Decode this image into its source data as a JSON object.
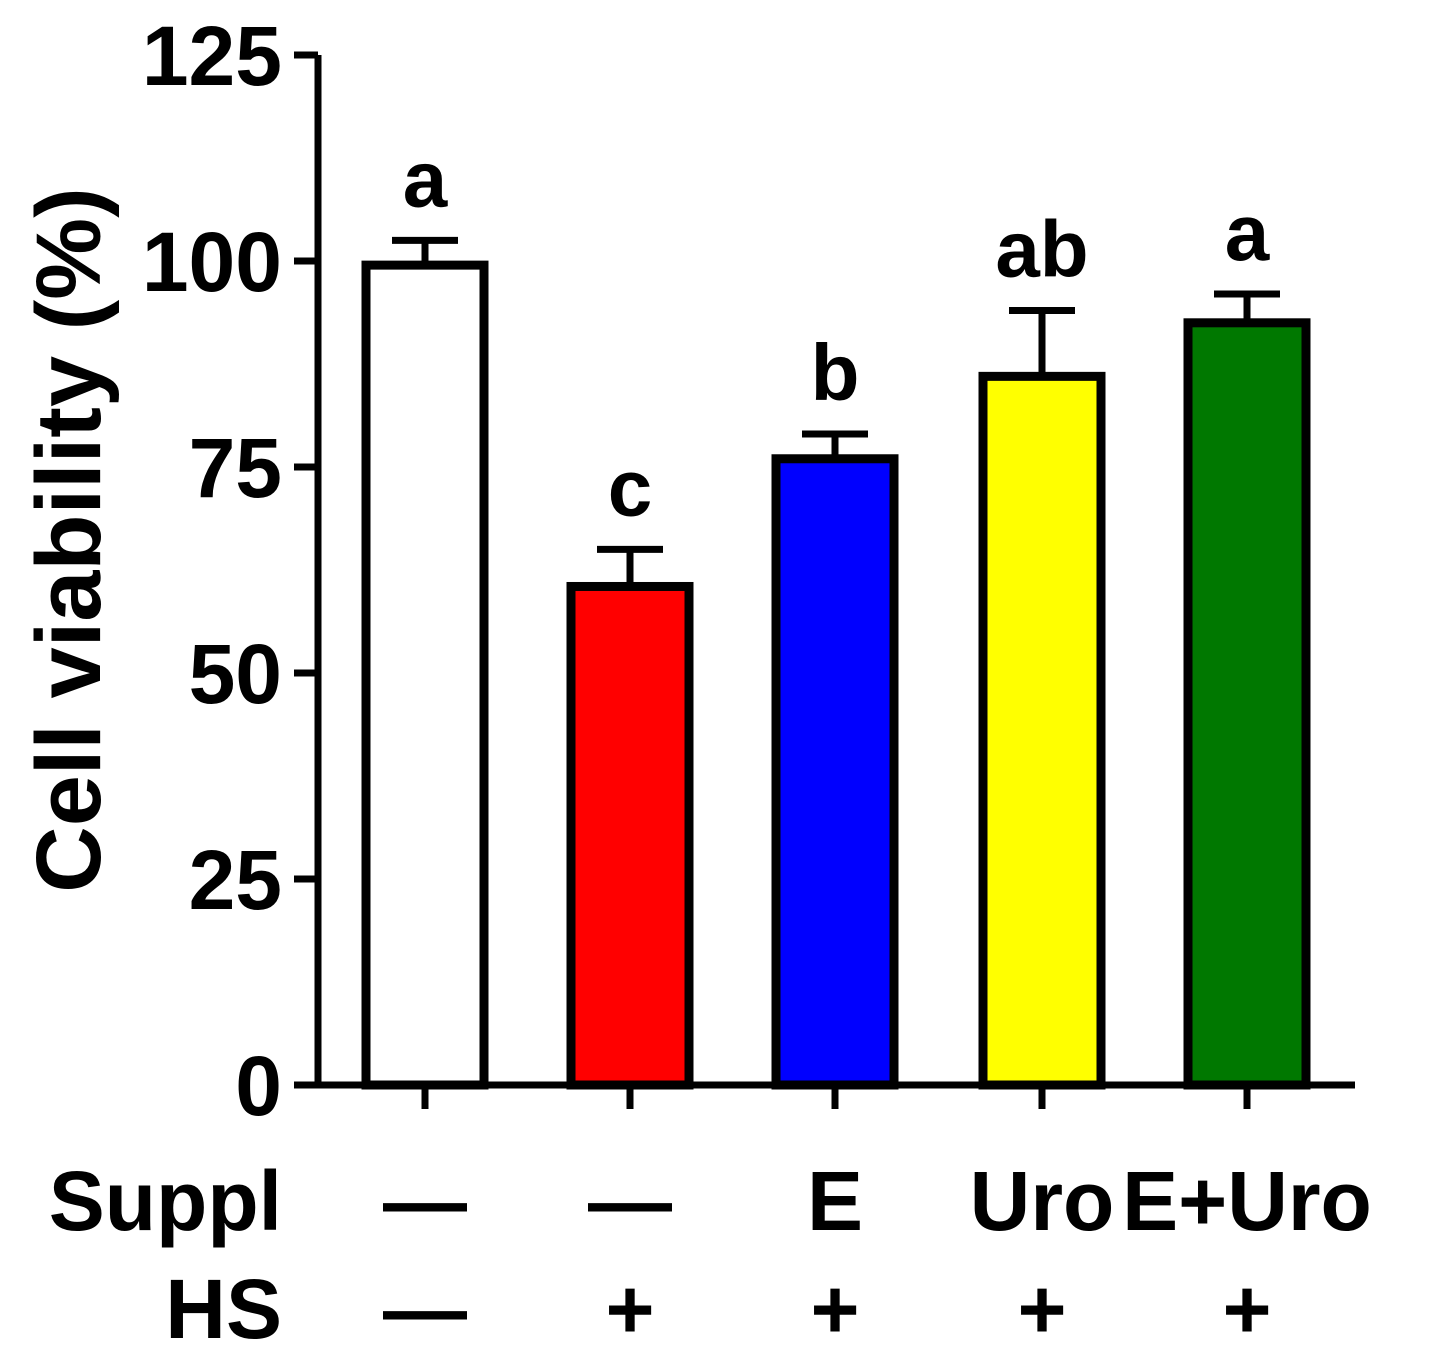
{
  "chart_data": {
    "type": "bar",
    "title": "",
    "xlabel": "",
    "ylabel": "Cell viability (%)",
    "ylim": [
      0,
      125
    ],
    "yticks": [
      0,
      25,
      50,
      75,
      100,
      125
    ],
    "grid": false,
    "legend": "none",
    "categories": [
      "—/—",
      "—/+",
      "E/+",
      "Uro/+",
      "E+Uro/+"
    ],
    "values": [
      99.5,
      60.5,
      76.0,
      86.0,
      92.5
    ],
    "errors": [
      3.0,
      4.5,
      3.0,
      8.0,
      3.5
    ],
    "significance": [
      "a",
      "c",
      "b",
      "ab",
      "a"
    ],
    "colors": [
      "#ffffff",
      "#ff0000",
      "#0000ff",
      "#ffff00",
      "#007800"
    ],
    "rows": [
      {
        "label": "Suppl",
        "values": [
          "—",
          "—",
          "E",
          "Uro",
          "E+Uro"
        ]
      },
      {
        "label": "HS",
        "values": [
          "—",
          "+",
          "+",
          "+",
          "+"
        ]
      }
    ]
  }
}
